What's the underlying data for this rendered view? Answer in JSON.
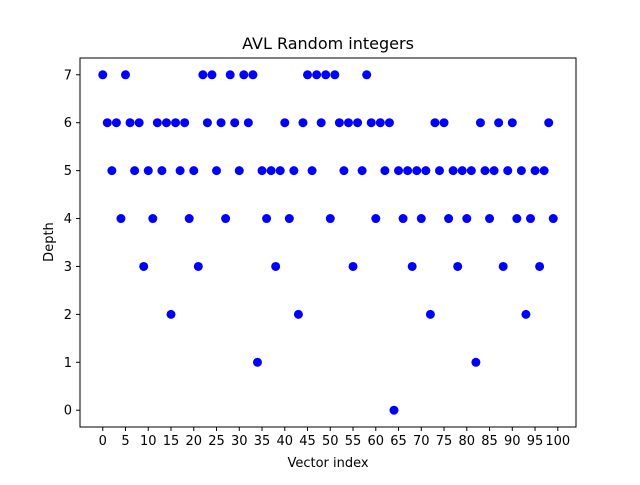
{
  "chart_data": {
    "type": "scatter",
    "title": "AVL Random integers",
    "xlabel": "Vector index",
    "ylabel": "Depth",
    "xlim": [
      -5,
      104
    ],
    "ylim": [
      -0.35,
      7.35
    ],
    "x_ticks": [
      0,
      5,
      10,
      15,
      20,
      25,
      30,
      35,
      40,
      45,
      50,
      55,
      60,
      65,
      70,
      75,
      80,
      85,
      90,
      95,
      100
    ],
    "y_ticks": [
      0,
      1,
      2,
      3,
      4,
      5,
      6,
      7
    ],
    "grid": false,
    "legend": "none",
    "marker_color": "#0000ff",
    "x": [
      0,
      1,
      2,
      3,
      4,
      5,
      6,
      7,
      8,
      9,
      10,
      11,
      12,
      13,
      14,
      15,
      16,
      17,
      18,
      19,
      20,
      21,
      22,
      23,
      24,
      25,
      26,
      27,
      28,
      29,
      30,
      31,
      32,
      33,
      34,
      35,
      36,
      37,
      38,
      39,
      40,
      41,
      42,
      43,
      44,
      45,
      46,
      47,
      48,
      49,
      50,
      51,
      52,
      53,
      54,
      55,
      56,
      57,
      58,
      59,
      60,
      61,
      62,
      63,
      64,
      65,
      66,
      67,
      68,
      69,
      70,
      71,
      72,
      73,
      74,
      75,
      76,
      77,
      78,
      79,
      80,
      81,
      82,
      83,
      84,
      85,
      86,
      87,
      88,
      89,
      90,
      91,
      92,
      93,
      94,
      95,
      96,
      97,
      98,
      99
    ],
    "y": [
      7,
      6,
      5,
      6,
      4,
      7,
      6,
      5,
      6,
      3,
      5,
      4,
      6,
      5,
      6,
      2,
      6,
      5,
      6,
      4,
      5,
      3,
      7,
      6,
      7,
      5,
      6,
      4,
      7,
      6,
      5,
      7,
      6,
      7,
      1,
      5,
      4,
      5,
      3,
      5,
      6,
      4,
      5,
      2,
      6,
      7,
      5,
      7,
      6,
      7,
      4,
      7,
      6,
      5,
      6,
      3,
      6,
      5,
      7,
      6,
      4,
      6,
      5,
      6,
      0,
      5,
      4,
      5,
      3,
      5,
      4,
      5,
      2,
      6,
      5,
      6,
      4,
      5,
      3,
      5,
      4,
      5,
      1,
      6,
      5,
      4,
      5,
      6,
      3,
      5,
      6,
      4,
      5,
      2,
      4,
      5,
      3,
      5,
      6,
      4
    ]
  }
}
